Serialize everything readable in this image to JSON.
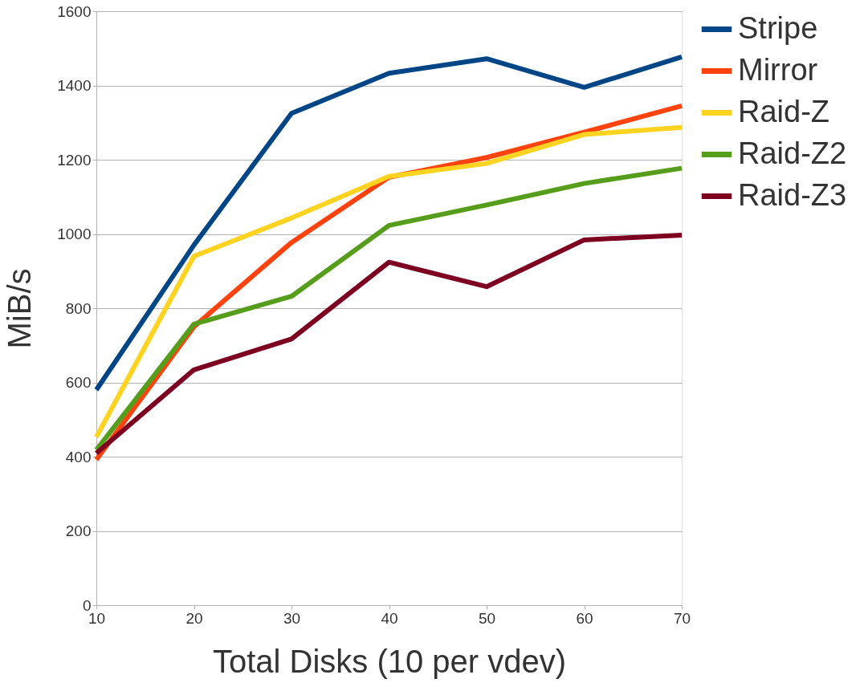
{
  "chart_data": {
    "type": "line",
    "xlabel": "Total Disks (10 per vdev)",
    "ylabel": "MiB/s",
    "x": [
      10,
      20,
      30,
      40,
      50,
      60,
      70
    ],
    "series": [
      {
        "name": "Stripe",
        "color": "#004586",
        "values": [
          580,
          970,
          1325,
          1433,
          1472,
          1395,
          1477
        ]
      },
      {
        "name": "Mirror",
        "color": "#ff420e",
        "values": [
          392,
          750,
          977,
          1153,
          1206,
          1274,
          1345
        ]
      },
      {
        "name": "Raid-Z",
        "color": "#ffd320",
        "values": [
          453,
          940,
          1043,
          1155,
          1190,
          1268,
          1287
        ]
      },
      {
        "name": "Raid-Z2",
        "color": "#579d1c",
        "values": [
          418,
          757,
          832,
          1023,
          1078,
          1136,
          1177
        ]
      },
      {
        "name": "Raid-Z3",
        "color": "#7e0021",
        "values": [
          409,
          634,
          717,
          924,
          858,
          984,
          997
        ]
      }
    ],
    "xlim": [
      10,
      70
    ],
    "xticks": [
      10,
      20,
      30,
      40,
      50,
      60,
      70
    ],
    "ylim": [
      0,
      1600
    ],
    "yticks": [
      0,
      200,
      400,
      600,
      800,
      1000,
      1200,
      1400,
      1600
    ],
    "grid": "y",
    "legend": "right",
    "marker": "none",
    "line_style": "solid"
  }
}
